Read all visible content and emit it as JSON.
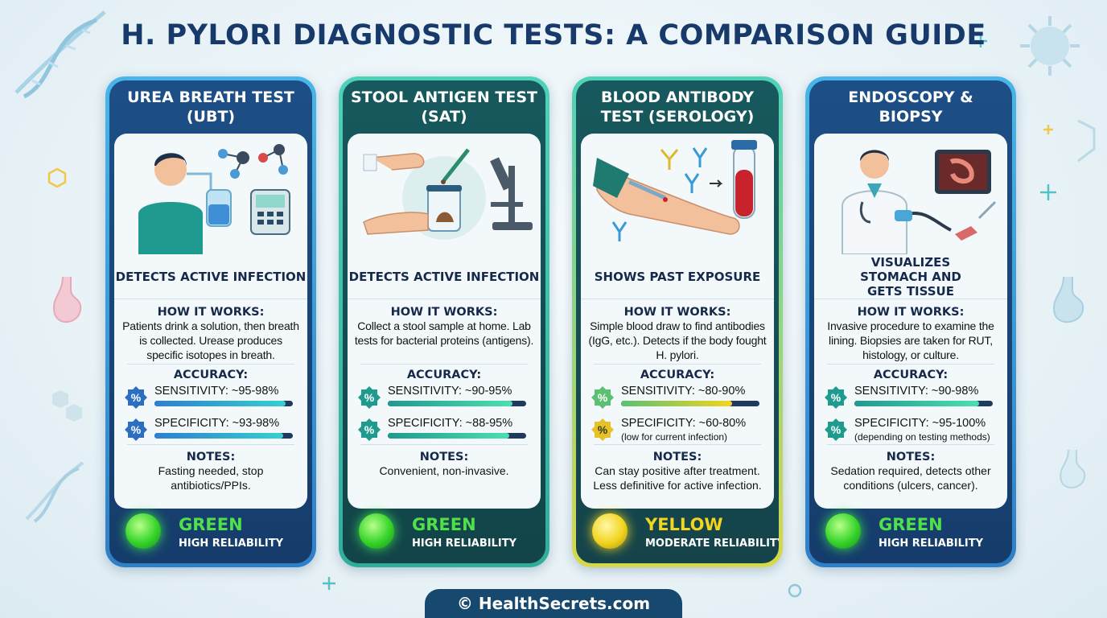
{
  "title": "H. PYLORI DIAGNOSTIC TESTS: A COMPARISON GUIDE",
  "colors": {
    "green": "#35d42a",
    "yellow": "#f2d51f",
    "navy": "#173a6b"
  },
  "cards": [
    {
      "name": "UREA BREATH TEST (UBT)",
      "tagline": "DETECTS ACTIVE INFECTION",
      "how_heading": "HOW IT WORKS:",
      "how_text": "Patients drink a solution, then breath is collected. Urease produces specific isotopes in breath.",
      "accuracy_heading": "ACCURACY:",
      "sensitivity": "SENSITIVITY: ~95-98%",
      "sensitivity_pct": 95,
      "specificity": "SPECIFICITY: ~93-98%",
      "specificity_pct": 93,
      "specificity_note": "",
      "notes_heading": "NOTES:",
      "notes_text": "Fasting needed, stop antibiotics/PPIs.",
      "rating_color": "GREEN",
      "rating_label": "HIGH RELIABILITY",
      "badge_icon": "percent-icon",
      "illustration": "patient-breath-test-illustration"
    },
    {
      "name": "STOOL ANTIGEN TEST (SAT)",
      "tagline": "DETECTS ACTIVE INFECTION",
      "how_heading": "HOW IT WORKS:",
      "how_text": "Collect a stool sample at home. Lab tests for bacterial proteins (antigens).",
      "accuracy_heading": "ACCURACY:",
      "sensitivity": "SENSITIVITY: ~90-95%",
      "sensitivity_pct": 90,
      "specificity": "SPECIFICITY: ~88-95%",
      "specificity_pct": 88,
      "specificity_note": "",
      "notes_heading": "NOTES:",
      "notes_text": "Convenient, non-invasive.",
      "rating_color": "GREEN",
      "rating_label": "HIGH RELIABILITY",
      "badge_icon": "percent-icon",
      "illustration": "stool-sample-microscope-illustration"
    },
    {
      "name": "BLOOD ANTIBODY TEST (SEROLOGY)",
      "tagline": "SHOWS PAST EXPOSURE",
      "how_heading": "HOW IT WORKS:",
      "how_text": "Simple blood draw to find antibodies (IgG, etc.). Detects if the body fought H. pylori.",
      "accuracy_heading": "ACCURACY:",
      "sensitivity": "SENSITIVITY: ~80-90%",
      "sensitivity_pct": 80,
      "specificity": "SPECIFICITY: ~60-80%",
      "specificity_pct": 60,
      "specificity_note": "(low for current infection)",
      "notes_heading": "NOTES:",
      "notes_text": "Can stay positive after treatment. Less definitive for active infection.",
      "rating_color": "YELLOW",
      "rating_label": "MODERATE RELIABILITY",
      "badge_icon": "percent-icon",
      "illustration": "blood-draw-antibodies-illustration"
    },
    {
      "name": "ENDOSCOPY & BIOPSY",
      "tagline": "VISUALIZES STOMACH AND GETS TISSUE",
      "how_heading": "HOW IT WORKS:",
      "how_text": "Invasive procedure to examine the lining. Biopsies are taken for RUT, histology, or culture.",
      "accuracy_heading": "ACCURACY:",
      "sensitivity": "SENSITIVITY: ~90-98%",
      "sensitivity_pct": 90,
      "specificity": "SPECIFICITY: ~95-100%",
      "specificity_pct": 95,
      "specificity_note": "(depending on testing methods)",
      "notes_heading": "NOTES:",
      "notes_text": "Sedation required, detects other conditions (ulcers, cancer).",
      "rating_color": "GREEN",
      "rating_label": "HIGH RELIABILITY",
      "badge_icon": "percent-icon",
      "illustration": "doctor-endoscopy-illustration"
    }
  ],
  "footer": "© HealthSecrets.com"
}
